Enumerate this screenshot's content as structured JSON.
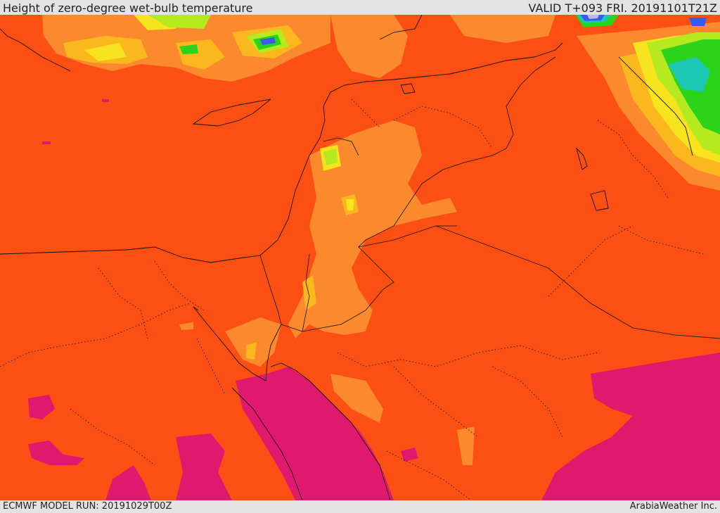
{
  "header": {
    "title": "Height of zero-degree wet-bulb temperature",
    "valid": "VALID T+093 FRI. 20191101T21Z"
  },
  "footer": {
    "model_run": "ECMWF MODEL RUN: 20191029T00Z",
    "credit": "ArabiaWeather Inc."
  },
  "colors": {
    "background_field": "#fb4f14",
    "light_orange": "#fb8a2f",
    "amber": "#fbb71e",
    "yellow": "#f7e31e",
    "light_green": "#b6ea20",
    "green": "#2bd31a",
    "teal": "#1cc8b5",
    "blue": "#3a5bf0",
    "lavender": "#b9b8f2",
    "magenta": "#e0186e",
    "border": "#111111"
  }
}
